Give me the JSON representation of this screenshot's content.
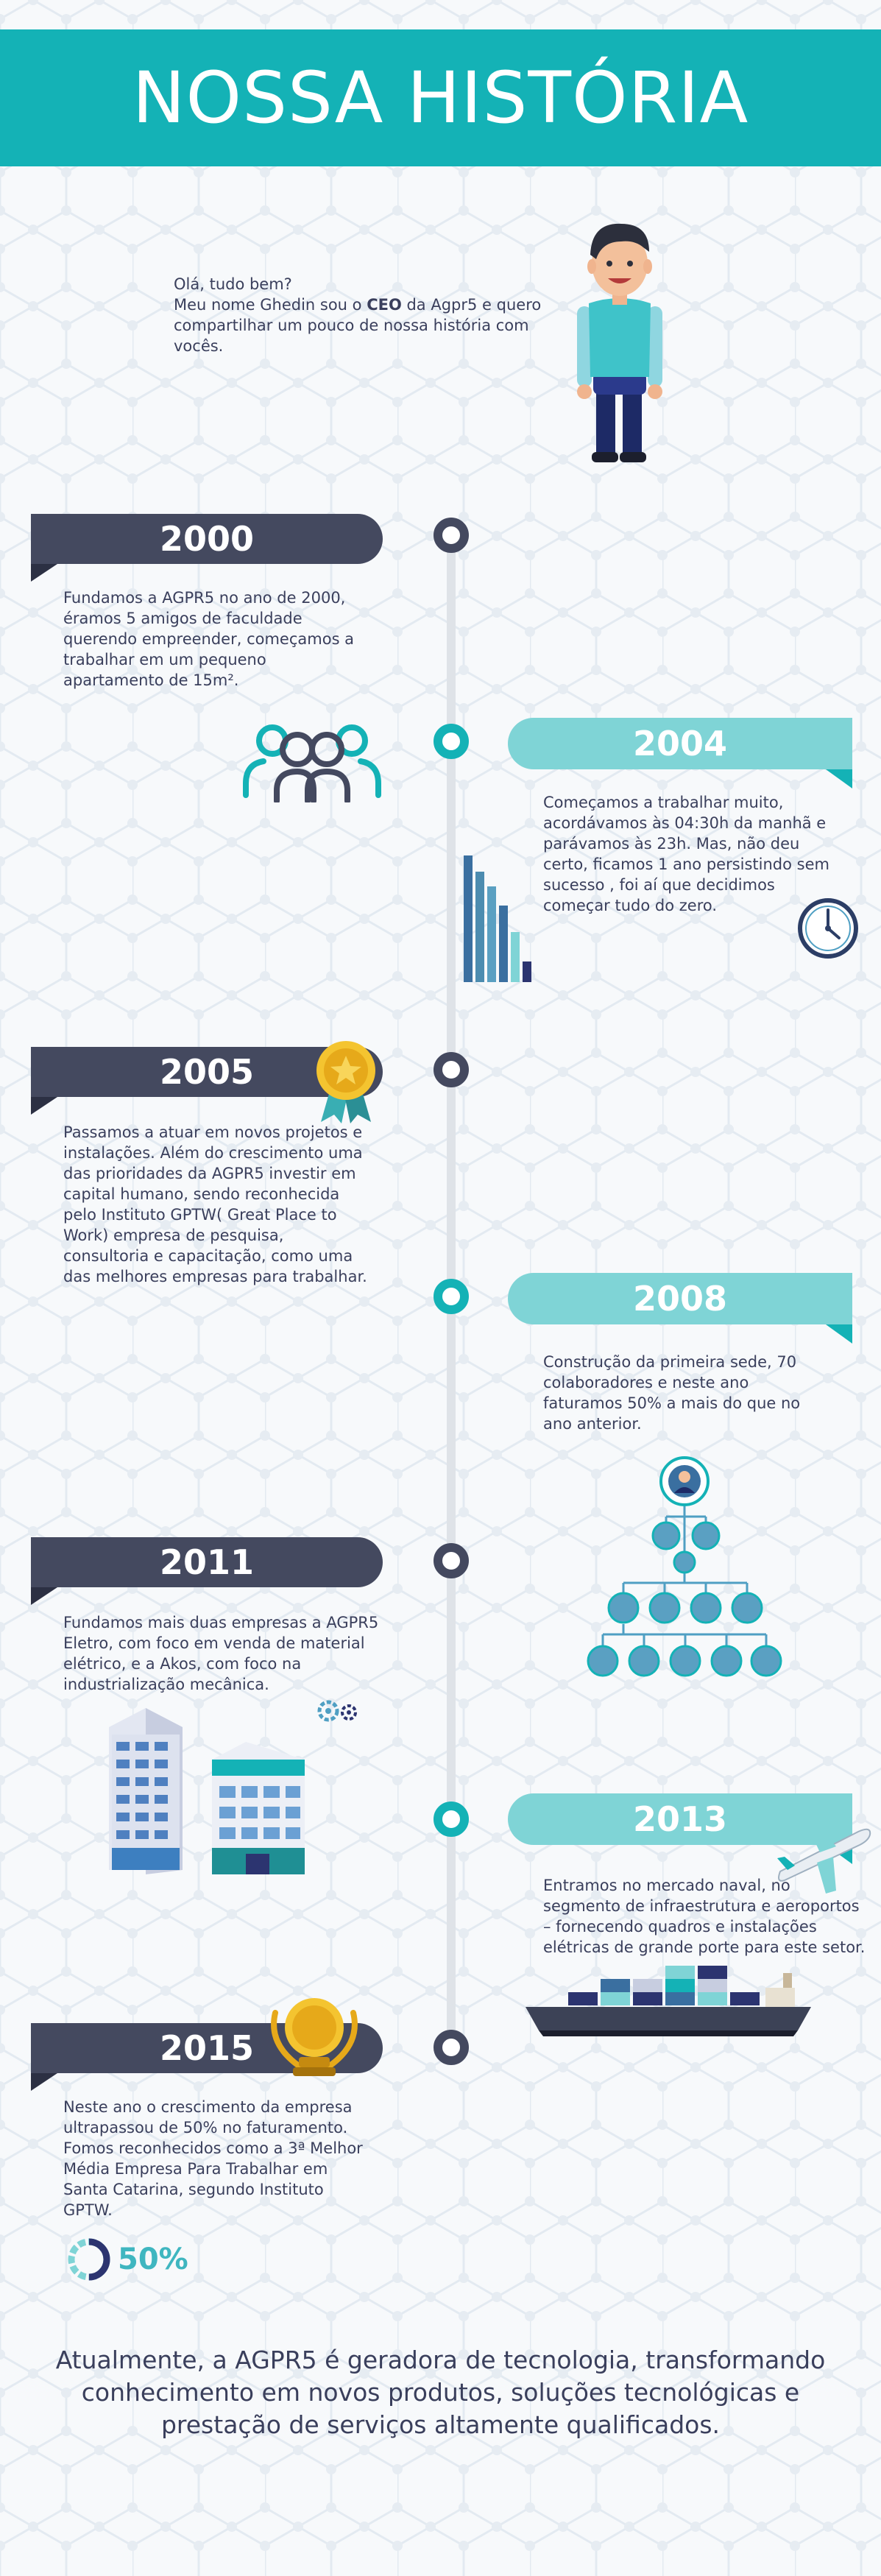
{
  "header": {
    "title": "NOSSA HISTÓRIA"
  },
  "intro": {
    "line1": "Olá, tudo bem?",
    "line2_pre": "Meu nome Ghedin sou o ",
    "line2_bold": "CEO",
    "line2_post": " da Agpr5 e quero compartilhar um pouco de nossa história com vocês."
  },
  "timeline": [
    {
      "year": "2000",
      "text": "Fundamos a AGPR5 no ano de 2000, éramos 5 amigos de faculdade querendo empreender, começamos a trabalhar em um pequeno apartamento de 15m²."
    },
    {
      "year": "2004",
      "text": "Começamos a trabalhar muito, acordávamos às 04:30h da manhã e parávamos às 23h. Mas, não deu certo, ficamos 1 ano persistindo sem sucesso , foi aí que decidimos começar tudo do zero."
    },
    {
      "year": "2005",
      "text": "Passamos a atuar em novos projetos e instalações. Além do crescimento uma das prioridades da AGPR5 investir em capital humano, sendo reconhecida pelo Instituto GPTW( Great Place to Work) empresa de pesquisa, consultoria e capacitação, como uma das melhores empresas para trabalhar."
    },
    {
      "year": "2008",
      "text": "Construção da primeira sede, 70 colaboradores e neste ano faturamos 50% a mais do que no ano anterior."
    },
    {
      "year": "2011",
      "text": "Fundamos mais duas empresas  a AGPR5 Eletro, com foco em venda de material elétrico, e a Akos, com foco na industrialização mecânica."
    },
    {
      "year": "2013",
      "text": "Entramos no mercado naval, no segmento de infraestrutura e aeroportos – fornecendo quadros e instalações elétricas de grande porte para este setor."
    },
    {
      "year": "2015",
      "text": "Neste ano o crescimento da empresa ultrapassou de 50% no faturamento. Fomos reconhecidos como a 3ª Melhor Média Empresa Para Trabalhar em Santa Catarina, segundo Instituto GPTW."
    }
  ],
  "growth_badge": {
    "value": "50%",
    "fill": 0.5
  },
  "closing": "Atualmente, a AGPR5 é geradora de tecnologia, transformando conhecimento em novos produtos, soluções tecnológicas e prestação de serviços altamente qualificados.",
  "colors": {
    "teal": "#14b2b6",
    "light_teal": "#7fd4d6",
    "navy": "#44495f",
    "text": "#3a3f5c"
  },
  "icons": [
    "team-icon",
    "bar-chart-icon",
    "clock-icon",
    "medal-icon",
    "org-chart-icon",
    "gears-icon",
    "buildings-icon",
    "airplane-icon",
    "cargo-ship-icon",
    "trophy-icon",
    "progress-ring-icon",
    "person-avatar"
  ]
}
